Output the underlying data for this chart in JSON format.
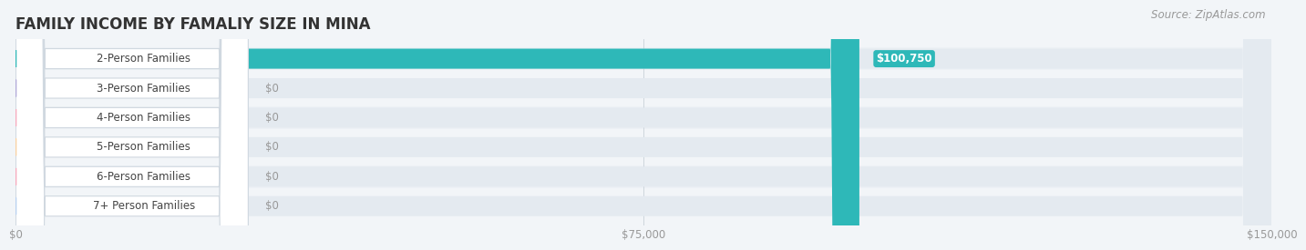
{
  "title": "FAMILY INCOME BY FAMALIY SIZE IN MINA",
  "source": "Source: ZipAtlas.com",
  "categories": [
    "2-Person Families",
    "3-Person Families",
    "4-Person Families",
    "5-Person Families",
    "6-Person Families",
    "7+ Person Families"
  ],
  "values": [
    100750,
    0,
    0,
    0,
    0,
    0
  ],
  "bar_colors": [
    "#2eb8b8",
    "#b0a8d8",
    "#f7a8bc",
    "#f9d0a0",
    "#f7a8bc",
    "#b8d0f0"
  ],
  "value_labels": [
    "$100,750",
    "$0",
    "$0",
    "$0",
    "$0",
    "$0"
  ],
  "xlim": [
    0,
    150000
  ],
  "xticks": [
    0,
    75000,
    150000
  ],
  "xtick_labels": [
    "$0",
    "$75,000",
    "$150,000"
  ],
  "background_color": "#f2f5f8",
  "bar_bg_color": "#e4eaf0",
  "row_colors": [
    "#edf1f5",
    "#f2f5f8"
  ],
  "title_fontsize": 12,
  "label_fontsize": 8.5,
  "value_fontsize": 8.5,
  "source_fontsize": 8.5
}
